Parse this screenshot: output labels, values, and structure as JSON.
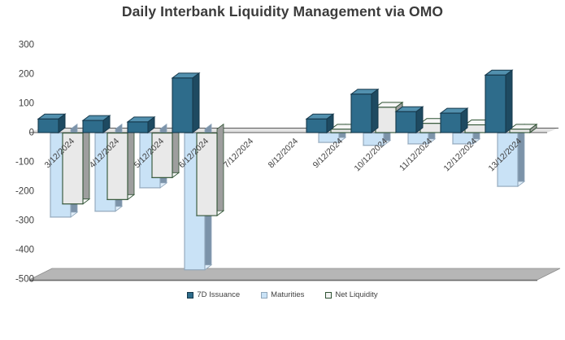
{
  "title": "Daily Interbank Liquidity Management via OMO",
  "chart_data": {
    "type": "bar",
    "subtype": "3d-clustered-column",
    "title": "Daily Interbank Liquidity Management via OMO",
    "categories": [
      "3/12/2024",
      "4/12/2024",
      "5/12/2024",
      "6/12/2024",
      "7/12/2024",
      "8/12/2024",
      "9/12/2024",
      "10/12/2024",
      "11/12/2024",
      "12/12/2024",
      "13/12/2024"
    ],
    "series": [
      {
        "name": "7D Issuance",
        "values": [
          45,
          40,
          35,
          185,
          0,
          0,
          45,
          130,
          70,
          65,
          195
        ],
        "front": "#2e6c8b",
        "top": "#5290ae",
        "side": "#1e4a61",
        "stroke": "#16394c"
      },
      {
        "name": "Maturities",
        "values": [
          -290,
          -270,
          -190,
          -470,
          0,
          0,
          -35,
          -45,
          -40,
          -40,
          -185
        ],
        "front": "#c9e2f6",
        "top": "#e0eefa",
        "side": "#7c93a9",
        "stroke": "#8fa6ba"
      },
      {
        "name": "Net Liquidity",
        "values": [
          -245,
          -230,
          -155,
          -285,
          0,
          0,
          10,
          85,
          30,
          25,
          10
        ],
        "front": "#e9e9e9",
        "top": "#f6f6f6",
        "side": "#9e9e9e",
        "stroke": "#2f5233"
      }
    ],
    "xlabel": "",
    "ylabel": "",
    "ylim": [
      -500,
      300
    ],
    "yticks": [
      300,
      200,
      100,
      0,
      -100,
      -200,
      -300,
      -400,
      -500
    ],
    "grid": false,
    "legend_position": "bottom",
    "colors": {
      "title_text": "#3b3b3b",
      "axis_text": "#3f3f3f",
      "axis_line": "#595959",
      "zero_plane_fill": "#e2e2e2",
      "floor_fill": "#b6b6b6",
      "floor_edge": "#8c8c8c",
      "background": "#ffffff"
    }
  },
  "legend": {
    "items": [
      {
        "label": "7D Issuance",
        "swatch": "#2e6c8b",
        "swatch_border": "#16394c"
      },
      {
        "label": "Maturities",
        "swatch": "#c9e2f6",
        "swatch_border": "#8fa6ba"
      },
      {
        "label": "Net Liquidity",
        "swatch": "#f2f2f2",
        "swatch_border": "#2f5233"
      }
    ]
  }
}
